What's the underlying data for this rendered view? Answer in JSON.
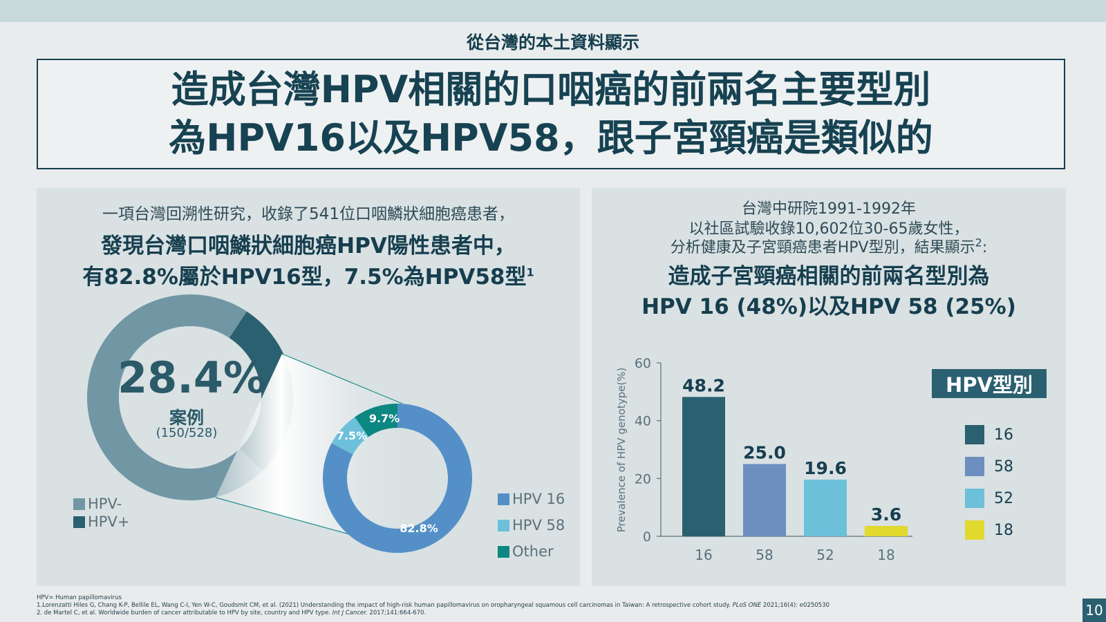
{
  "header": {
    "subtitle": "從台灣的本土資料顯示",
    "title_line1": "造成台灣HPV相關的口咽癌的前兩名主要型別",
    "title_line2": "為HPV16以及HPV58，跟子宮頸癌是類似的"
  },
  "left_panel": {
    "intro": "一項台灣回溯性研究，收錄了541位口咽鱗狀細胞癌患者，",
    "strong_line1": "發現台灣口咽鱗狀細胞癌HPV陽性患者中，",
    "strong_line2": "有82.8%屬於HPV16型，7.5%為HPV58型",
    "ref_mark": "1",
    "big_percent": "28.4%",
    "case_label": "案例",
    "case_count": "(150/528)",
    "legend_left": [
      "HPV-",
      "HPV+"
    ],
    "legend_mid": [
      "HPV 16",
      "HPV 58",
      "Other"
    ],
    "colors": {
      "hpv_neg": "#7197a5",
      "hpv_pos": "#2b6070",
      "hpv16": "#5490c7",
      "hpv58": "#6cc0d9",
      "other": "#0c8782"
    }
  },
  "right_panel": {
    "intro_line1": "台灣中研院1991-1992年",
    "intro_line2": "以社區試驗收錄10,602位30-65歲女性，",
    "intro_line3": "分析健康及子宮頸癌患者HPV型別，結果顯示",
    "ref_mark": "2",
    "intro_end": ":",
    "strong_line1": "造成子宮頸癌相關的前兩名型別為",
    "strong_line2": "HPV 16 (48%)以及HPV 58 (25%)",
    "legend_title": "HPV型別",
    "legend": [
      {
        "label": "16",
        "color": "#2b6070"
      },
      {
        "label": "58",
        "color": "#6d8fbf"
      },
      {
        "label": "52",
        "color": "#6cc0d9"
      },
      {
        "label": "18",
        "color": "#e2d92f"
      }
    ]
  },
  "chart_data": [
    {
      "type": "pie",
      "categories": [
        "HPV-",
        "HPV+"
      ],
      "values": [
        71.6,
        28.4
      ],
      "colors": [
        "#7197a5",
        "#2b6070"
      ]
    },
    {
      "type": "pie",
      "categories": [
        "HPV 16",
        "HPV 58",
        "Other"
      ],
      "values": [
        82.8,
        7.5,
        9.7
      ],
      "data_labels": [
        "82.8%",
        "7.5%",
        "9.7%"
      ],
      "colors": [
        "#5490c7",
        "#6cc0d9",
        "#0c8782"
      ]
    },
    {
      "type": "bar",
      "categories": [
        "16",
        "58",
        "52",
        "18"
      ],
      "values": [
        48.2,
        25.0,
        19.6,
        3.6
      ],
      "data_labels": [
        "48.2",
        "25.0",
        "19.6",
        "3.6"
      ],
      "colors": [
        "#2b6070",
        "#6d8fbf",
        "#6cc0d9",
        "#e2d92f"
      ],
      "ylabel": "Prevalence of HPV genotype(%)",
      "ylim": [
        0,
        60
      ],
      "yticks": [
        "0",
        "20",
        "40",
        "60"
      ],
      "grid": false
    }
  ],
  "footnotes": {
    "line0": "HPV= Human papillomavirus",
    "line1_a": "1.Lorenzatti Hiles G, Chang K-P, Bellile EL, Wang C-I, Yen W-C, Goudsmit CM, et al. (2021) Understanding the impact of high-risk human papillomavirus on oropharyngeal squamous cell carcinomas in Taiwan: A retrospective cohort study. ",
    "line1_journal": "PLoS ONE",
    "line1_b": " 2021;16(4): e0250530",
    "line2_a": "2. de Martel C, et al. Worldwide burden of cancer attributable to HPV by site, country and HPV type. ",
    "line2_journal": "Int J Cancer.",
    "line2_b": " 2017;141:664-670."
  },
  "page_number": "10"
}
